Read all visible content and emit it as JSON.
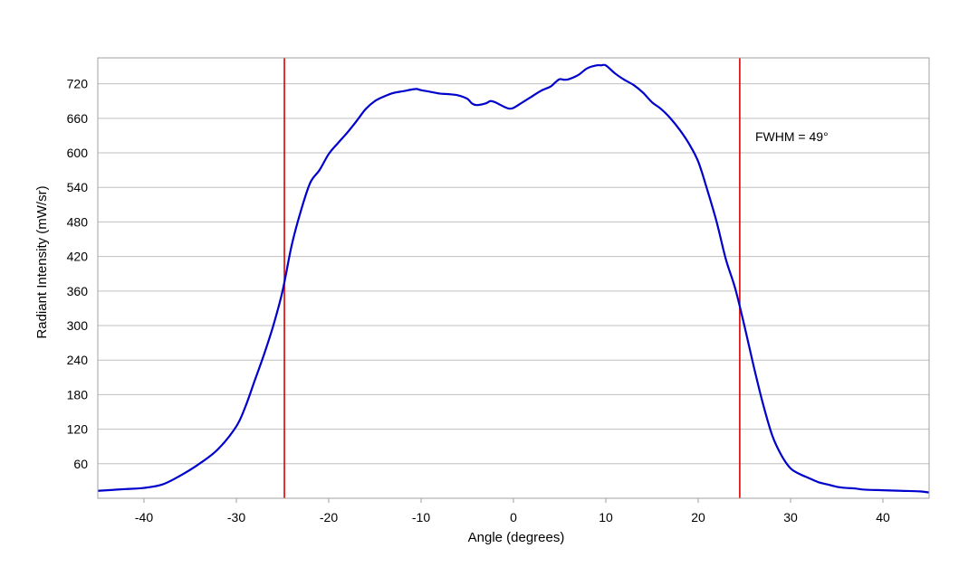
{
  "colors": {
    "series": "#0000cc",
    "marker_lines": "#dd0000",
    "grid": "#c0c0c0",
    "frame": "#a0a0a0"
  },
  "chart_data": {
    "type": "line",
    "title": "",
    "xlabel": "Angle (degrees)",
    "ylabel": "Radiant Intensity (mW/sr)",
    "xlim": [
      -45,
      45
    ],
    "ylim": [
      0,
      765
    ],
    "xticks": [
      -40,
      -30,
      -20,
      -10,
      0,
      10,
      20,
      30,
      40
    ],
    "yticks": [
      60,
      120,
      180,
      240,
      300,
      360,
      420,
      480,
      540,
      600,
      660,
      720
    ],
    "grid": "horizontal",
    "vertical_lines": [
      -24.8,
      24.5
    ],
    "annotation": "FWHM = 49°",
    "series": [
      {
        "x": [
          -45,
          -44,
          -42,
          -40,
          -38,
          -36,
          -34,
          -32,
          -30,
          -29,
          -28,
          -27,
          -26,
          -25,
          -24,
          -23,
          -22,
          -21,
          -20,
          -19,
          -18,
          -17,
          -16,
          -15,
          -14,
          -13,
          -12,
          -11,
          -10.5,
          -10,
          -9,
          -8,
          -7,
          -6,
          -5,
          -4.5,
          -4,
          -3,
          -2.5,
          -2,
          -1,
          -0.5,
          0,
          1,
          2,
          3,
          4,
          4.5,
          5,
          5.5,
          6,
          7,
          8,
          9,
          9.5,
          10,
          11,
          12,
          13,
          14,
          15,
          16,
          17,
          18,
          19,
          20,
          21,
          22,
          23,
          24,
          25,
          26,
          27,
          28,
          29,
          30,
          31,
          32,
          33,
          34,
          35,
          36,
          37,
          38,
          40,
          42,
          44,
          45
        ],
        "y": [
          13,
          14,
          16,
          18,
          24,
          40,
          60,
          85,
          125,
          160,
          205,
          250,
          300,
          360,
          440,
          500,
          548,
          570,
          598,
          617,
          635,
          655,
          676,
          690,
          698,
          704,
          707,
          710,
          711,
          709,
          706,
          703,
          702,
          700,
          694,
          686,
          683,
          686,
          690,
          688,
          680,
          677,
          678,
          688,
          698,
          708,
          715,
          722,
          728,
          727,
          728,
          735,
          747,
          752,
          752,
          752,
          738,
          727,
          718,
          705,
          688,
          676,
          660,
          640,
          616,
          585,
          535,
          480,
          415,
          365,
          300,
          230,
          165,
          110,
          75,
          52,
          42,
          35,
          28,
          24,
          20,
          18,
          17,
          15,
          14,
          13,
          12,
          10
        ]
      }
    ]
  }
}
